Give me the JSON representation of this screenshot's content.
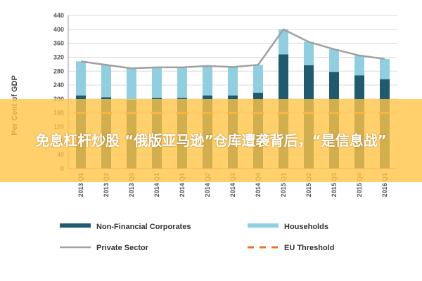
{
  "chart_data": {
    "type": "bar",
    "stacked": true,
    "categories": [
      "2013 Q1",
      "2013 Q2",
      "2013 Q3",
      "2014 Q1",
      "2014 Q1",
      "2014 Q2",
      "2014 Q3",
      "2014 Q4",
      "2015 Q1",
      "2015 Q2",
      "2015 Q3",
      "2015 Q4",
      "2016 Q1"
    ],
    "series": [
      {
        "name": "Non-Financial Corporates",
        "type": "bar",
        "color": "#1f5a6e",
        "values": [
          210,
          205,
          198,
          203,
          203,
          210,
          210,
          218,
          328,
          297,
          278,
          268,
          257
        ]
      },
      {
        "name": "Households",
        "type": "bar",
        "color": "#8fcfe0",
        "values": [
          98,
          93,
          90,
          88,
          88,
          85,
          82,
          80,
          72,
          67,
          65,
          57,
          58
        ]
      },
      {
        "name": "Private Sector",
        "type": "line",
        "color": "#a0a0a0",
        "values": [
          308,
          298,
          288,
          291,
          291,
          295,
          292,
          298,
          400,
          364,
          343,
          325,
          315
        ]
      },
      {
        "name": "EU Threshold",
        "type": "dashed-line",
        "color": "#e8732a",
        "values": [
          160,
          160,
          160,
          160,
          160,
          160,
          160,
          160,
          160,
          160,
          160,
          160,
          160
        ]
      }
    ],
    "ylabel": "Per Cent of GDP",
    "ylim": [
      0,
      440
    ],
    "yticks": [
      0,
      40,
      80,
      120,
      160,
      200,
      240,
      280,
      320,
      360,
      400,
      440
    ],
    "grid": true,
    "legend_position": "bottom"
  },
  "overlay": {
    "text": "免息杠杆炒股 “俄版亚马逊”仓库遭袭背后，“是信息战”"
  }
}
